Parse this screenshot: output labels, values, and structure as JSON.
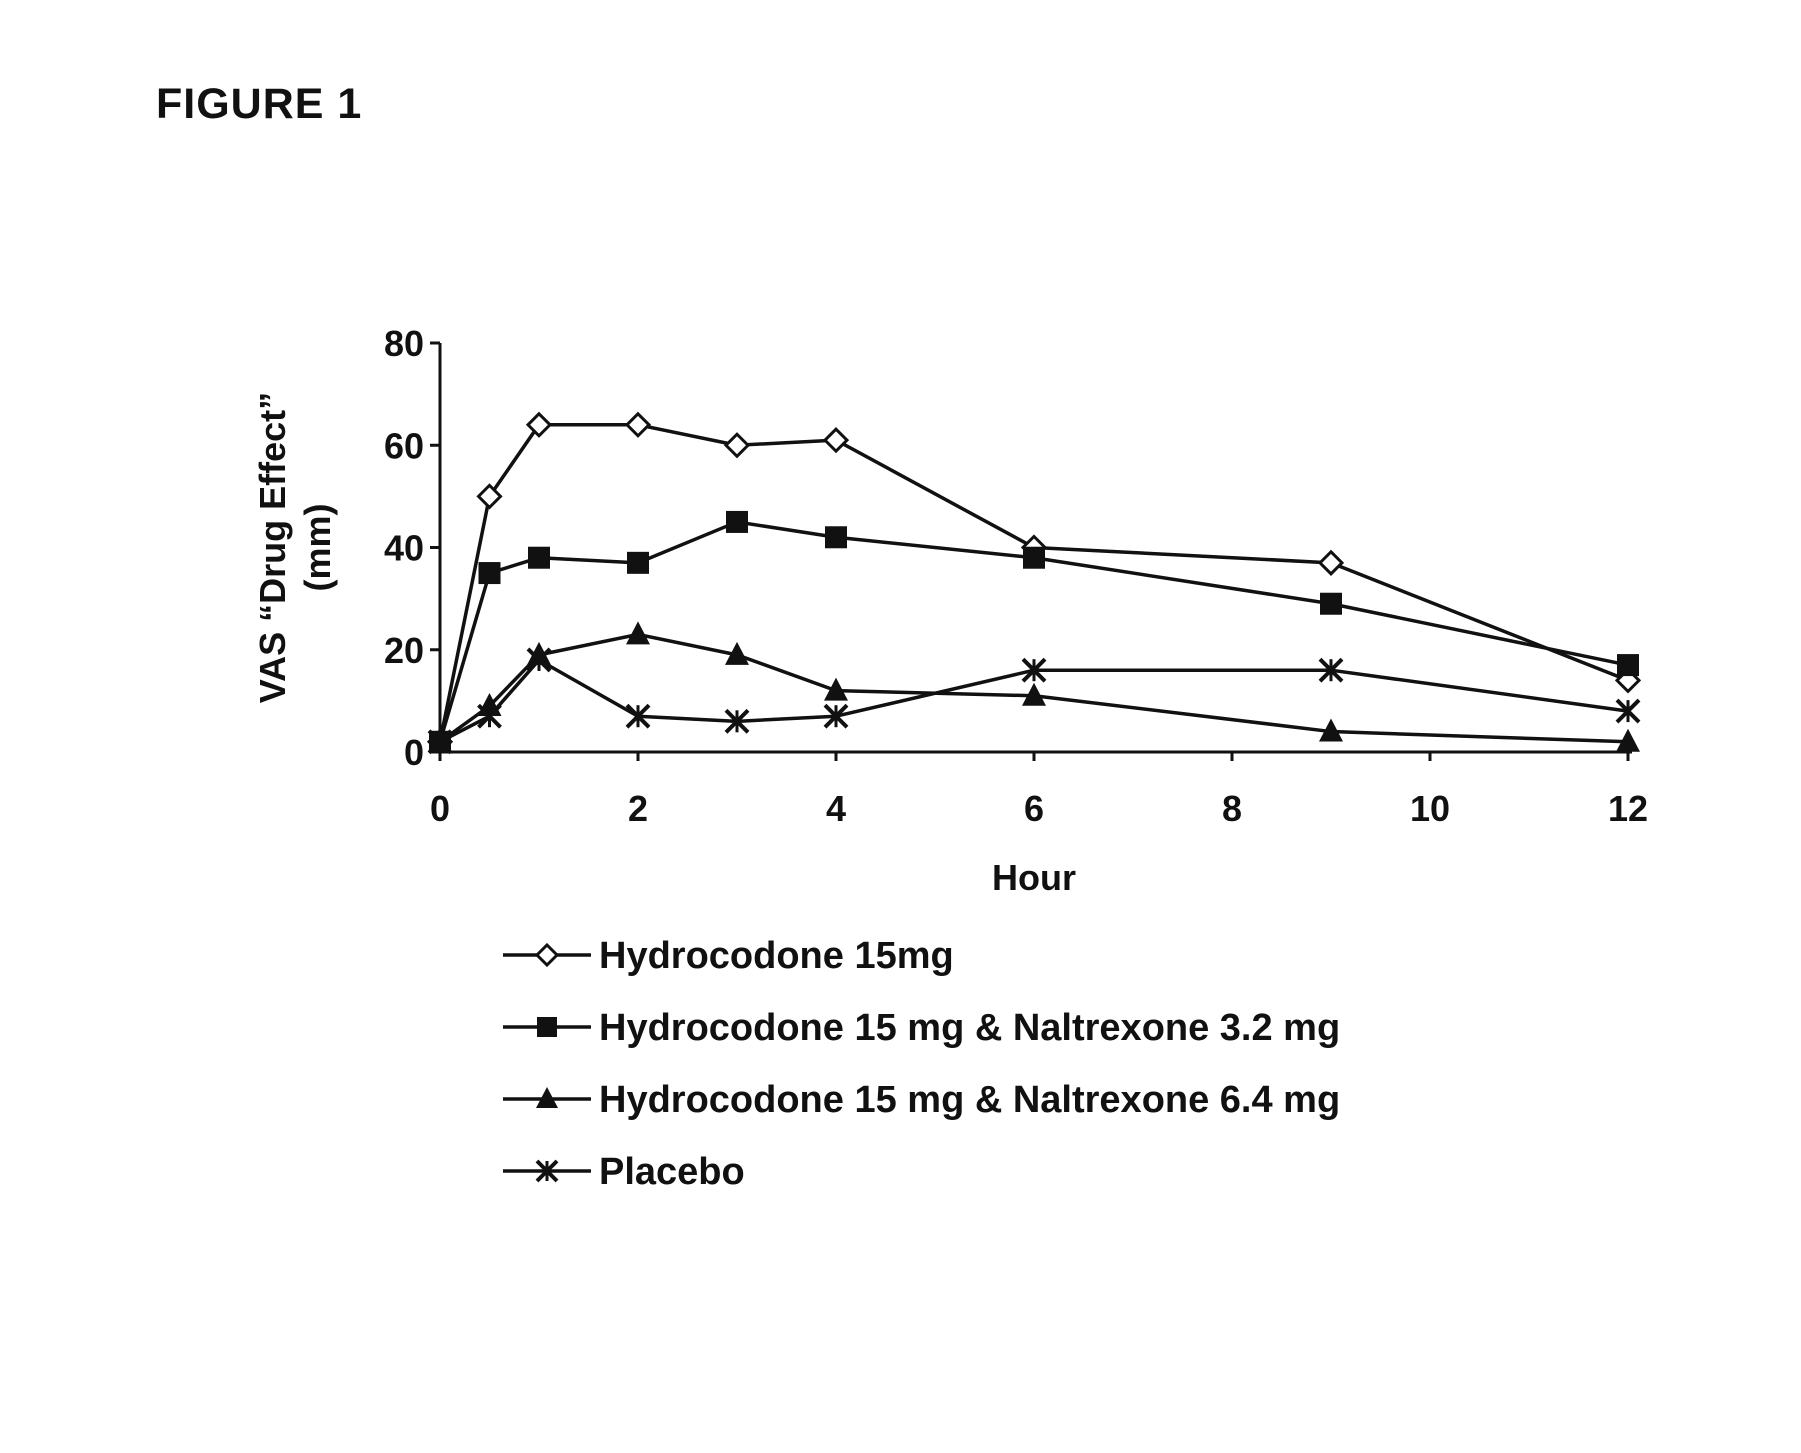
{
  "figure_title": "FIGURE 1",
  "chart_data": {
    "type": "line",
    "title": "",
    "xlabel": "Hour",
    "ylabel_lines": [
      "VAS “Drug Effect”",
      "(mm)"
    ],
    "xlim": [
      0,
      12
    ],
    "ylim": [
      0,
      80
    ],
    "xticks": [
      0,
      2,
      4,
      6,
      8,
      10,
      12
    ],
    "yticks": [
      0,
      20,
      40,
      60,
      80
    ],
    "grid": false,
    "legend_position": "below",
    "series": [
      {
        "name": "Hydrocodone 15mg",
        "marker": "open-diamond",
        "color": "#111111",
        "points": [
          [
            0,
            2
          ],
          [
            0.5,
            50
          ],
          [
            1,
            64
          ],
          [
            2,
            64
          ],
          [
            3,
            60
          ],
          [
            4,
            61
          ],
          [
            6,
            40
          ],
          [
            9,
            37
          ],
          [
            12,
            14
          ]
        ]
      },
      {
        "name": "Hydrocodone 15 mg & Naltrexone 3.2 mg",
        "marker": "filled-square",
        "color": "#111111",
        "points": [
          [
            0,
            2
          ],
          [
            0.5,
            35
          ],
          [
            1,
            38
          ],
          [
            2,
            37
          ],
          [
            3,
            45
          ],
          [
            4,
            42
          ],
          [
            6,
            38
          ],
          [
            9,
            29
          ],
          [
            12,
            17
          ]
        ]
      },
      {
        "name": "Hydrocodone 15 mg & Naltrexone 6.4 mg",
        "marker": "filled-triangle",
        "color": "#111111",
        "points": [
          [
            0,
            2
          ],
          [
            0.5,
            9
          ],
          [
            1,
            19
          ],
          [
            2,
            23
          ],
          [
            3,
            19
          ],
          [
            4,
            12
          ],
          [
            6,
            11
          ],
          [
            9,
            4
          ],
          [
            12,
            2
          ]
        ]
      },
      {
        "name": "Placebo",
        "marker": "star",
        "color": "#111111",
        "points": [
          [
            0,
            2
          ],
          [
            0.5,
            7
          ],
          [
            1,
            18
          ],
          [
            2,
            7
          ],
          [
            3,
            6
          ],
          [
            4,
            7
          ],
          [
            6,
            16
          ],
          [
            9,
            16
          ],
          [
            12,
            8
          ]
        ]
      }
    ]
  }
}
